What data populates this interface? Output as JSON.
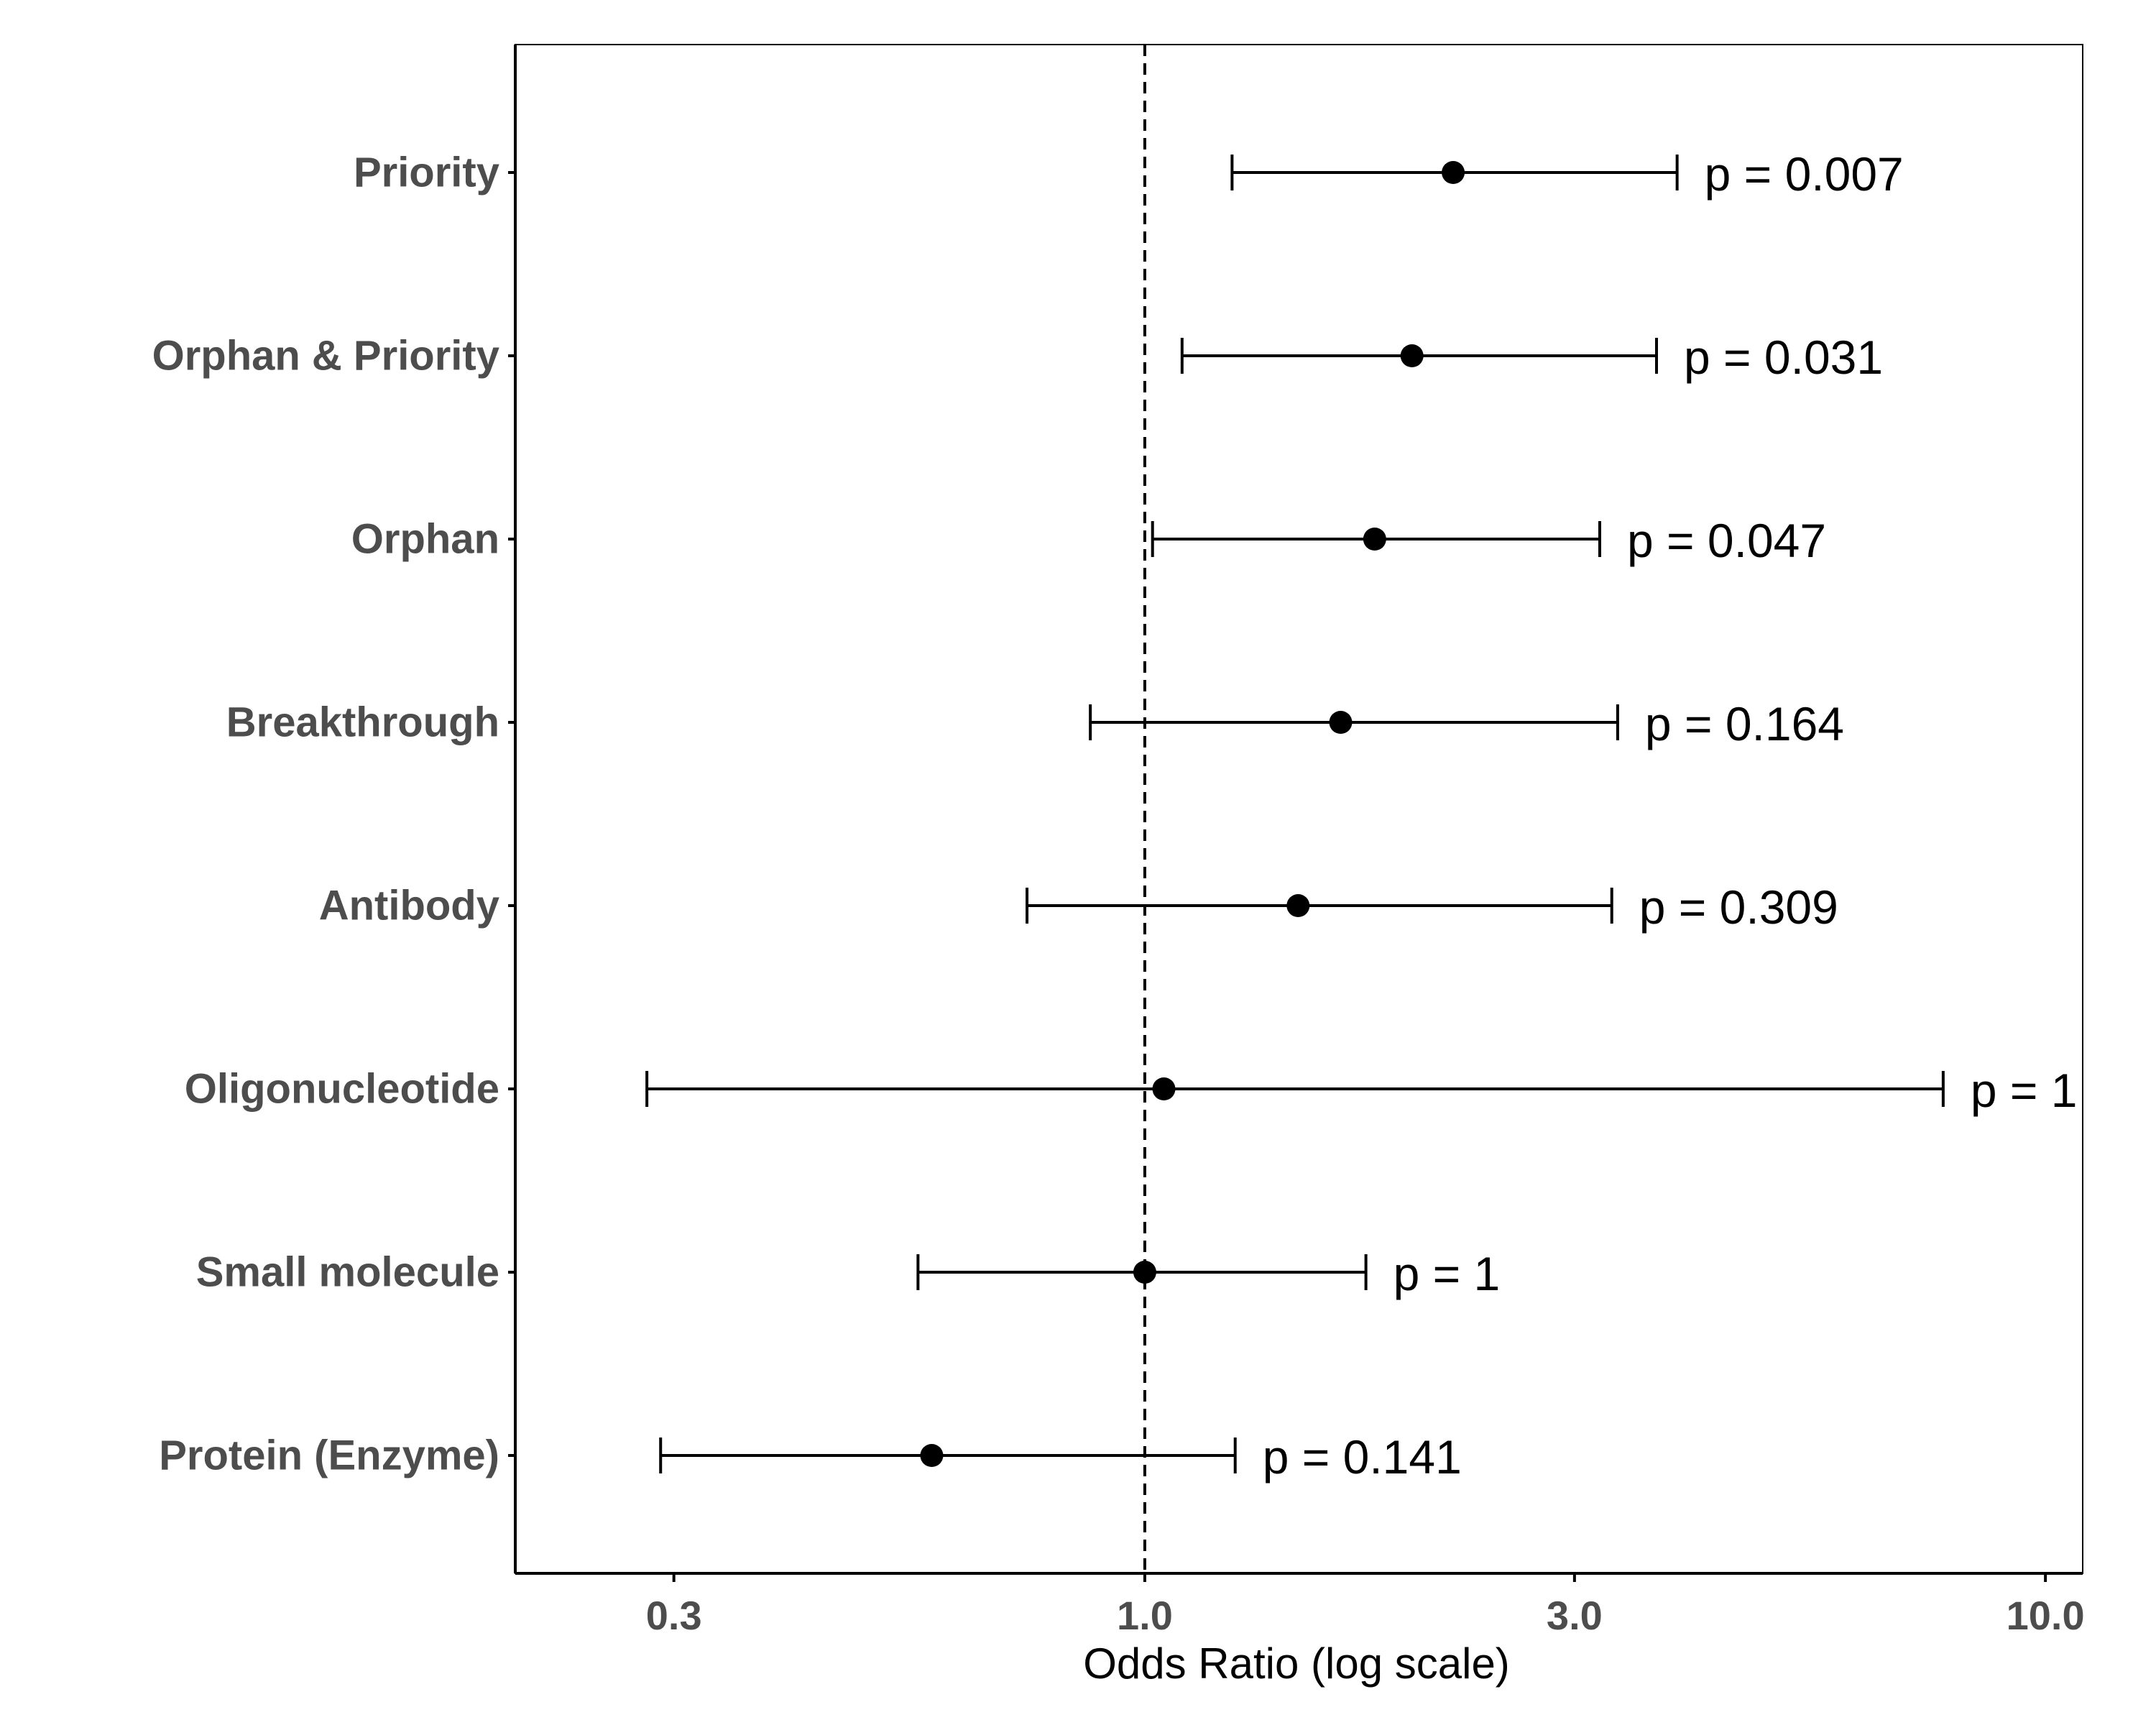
{
  "chart_data": {
    "type": "scatter",
    "xlabel": "Odds Ratio (log scale)",
    "ylabel": "",
    "x_scale": "log",
    "xlim": [
      0.2,
      11.0
    ],
    "x_ticks": [
      0.3,
      1.0,
      3.0,
      10.0
    ],
    "x_tick_labels": [
      "0.3",
      "1.0",
      "3.0",
      "10.0"
    ],
    "reference_line": {
      "x": 1.0,
      "style": "dashed"
    },
    "grid": false,
    "legend": "none",
    "colors": {
      "points": "#000000",
      "labels": "#4d4d4d",
      "reference_line": "#000000"
    },
    "categories": [
      "Priority",
      "Orphan & Priority",
      "Orphan",
      "Breakthrough",
      "Antibody",
      "Oligonucleotide",
      "Small molecule",
      "Protein (Enzyme)"
    ],
    "points": [
      {
        "label": "Priority",
        "estimate": 2.2,
        "lower": 1.25,
        "upper": 3.9,
        "p_text": "p = 0.007"
      },
      {
        "label": "Orphan & Priority",
        "estimate": 1.98,
        "lower": 1.1,
        "upper": 3.7,
        "p_text": "p = 0.031"
      },
      {
        "label": "Orphan",
        "estimate": 1.8,
        "lower": 1.02,
        "upper": 3.2,
        "p_text": "p = 0.047"
      },
      {
        "label": "Breakthrough",
        "estimate": 1.65,
        "lower": 0.87,
        "upper": 3.35,
        "p_text": "p = 0.164"
      },
      {
        "label": "Antibody",
        "estimate": 1.48,
        "lower": 0.74,
        "upper": 3.3,
        "p_text": "p = 0.309"
      },
      {
        "label": "Oligonucleotide",
        "estimate": 1.05,
        "lower": 0.28,
        "upper": 7.7,
        "p_text": "p = 1"
      },
      {
        "label": "Small molecule",
        "estimate": 1.0,
        "lower": 0.56,
        "upper": 1.76,
        "p_text": "p = 1"
      },
      {
        "label": "Protein (Enzyme)",
        "estimate": 0.58,
        "lower": 0.29,
        "upper": 1.26,
        "p_text": "p = 0.141"
      }
    ]
  }
}
